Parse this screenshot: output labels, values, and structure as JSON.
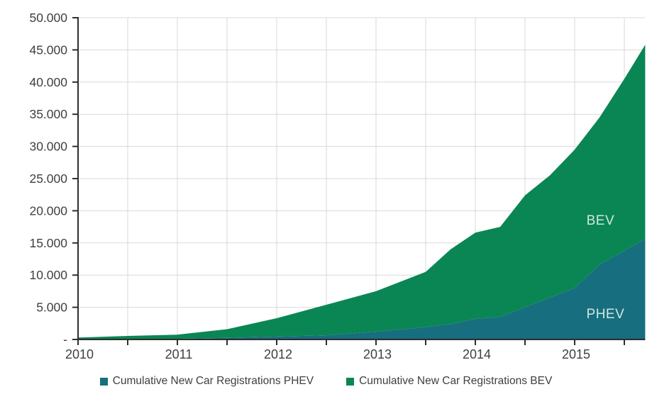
{
  "chart_data": {
    "type": "area",
    "stacked": true,
    "title": "",
    "xlabel": "",
    "ylabel": "",
    "x": [
      2010,
      2010.5,
      2011,
      2011.5,
      2012,
      2012.5,
      2013,
      2013.5,
      2013.75,
      2014,
      2014.25,
      2014.5,
      2014.75,
      2015,
      2015.25,
      2015.5,
      2015.71
    ],
    "series": [
      {
        "name": "Cumulative New Car Registrations PHEV",
        "short_label": "PHEV",
        "color": "#176e7f",
        "values": [
          30,
          50,
          100,
          250,
          450,
          650,
          1200,
          1900,
          2400,
          3200,
          3500,
          5000,
          6500,
          8000,
          11600,
          13800,
          15600
        ]
      },
      {
        "name": "Cumulative New Car Registrations BEV",
        "short_label": "BEV",
        "color": "#0a8655",
        "values": [
          270,
          500,
          650,
          1350,
          2850,
          4750,
          6300,
          8600,
          11600,
          13400,
          14000,
          17400,
          19000,
          21500,
          22900,
          26700,
          30200
        ]
      }
    ],
    "x_axis": {
      "min": 2010,
      "max": 2015.71,
      "year_labels": [
        "2010",
        "2011",
        "2012",
        "2013",
        "2014",
        "2015"
      ],
      "tick_interval": 0.5
    },
    "y_axis": {
      "min": 0,
      "max": 50000,
      "tick_interval": 5000,
      "ticks": [
        {
          "value": 0,
          "label": "-"
        },
        {
          "value": 5000,
          "label": "5.000"
        },
        {
          "value": 10000,
          "label": "10.000"
        },
        {
          "value": 15000,
          "label": "15.000"
        },
        {
          "value": 20000,
          "label": "20.000"
        },
        {
          "value": 25000,
          "label": "25.000"
        },
        {
          "value": 30000,
          "label": "30.000"
        },
        {
          "value": 35000,
          "label": "35.000"
        },
        {
          "value": 40000,
          "label": "40.000"
        },
        {
          "value": 45000,
          "label": "45.000"
        },
        {
          "value": 50000,
          "label": "50.000"
        }
      ]
    },
    "grid": {
      "show": true,
      "color": "#d9d9d9"
    },
    "legend_position": "bottom",
    "annotations": [
      {
        "text": "BEV",
        "x": 2015.26,
        "y": 18400
      },
      {
        "text": "PHEV",
        "x": 2015.31,
        "y": 3850
      }
    ]
  },
  "legend": {
    "items": [
      {
        "label": "Cumulative New Car Registrations PHEV",
        "color": "#176e7f"
      },
      {
        "label": "Cumulative New Car Registrations BEV",
        "color": "#0a8655"
      }
    ]
  },
  "colors": {
    "axis": "#2e2e2e",
    "grid": "#d9d9d9",
    "text": "#3f3f3f",
    "annotation_text": "#cfe7e0",
    "background": "#ffffff"
  }
}
